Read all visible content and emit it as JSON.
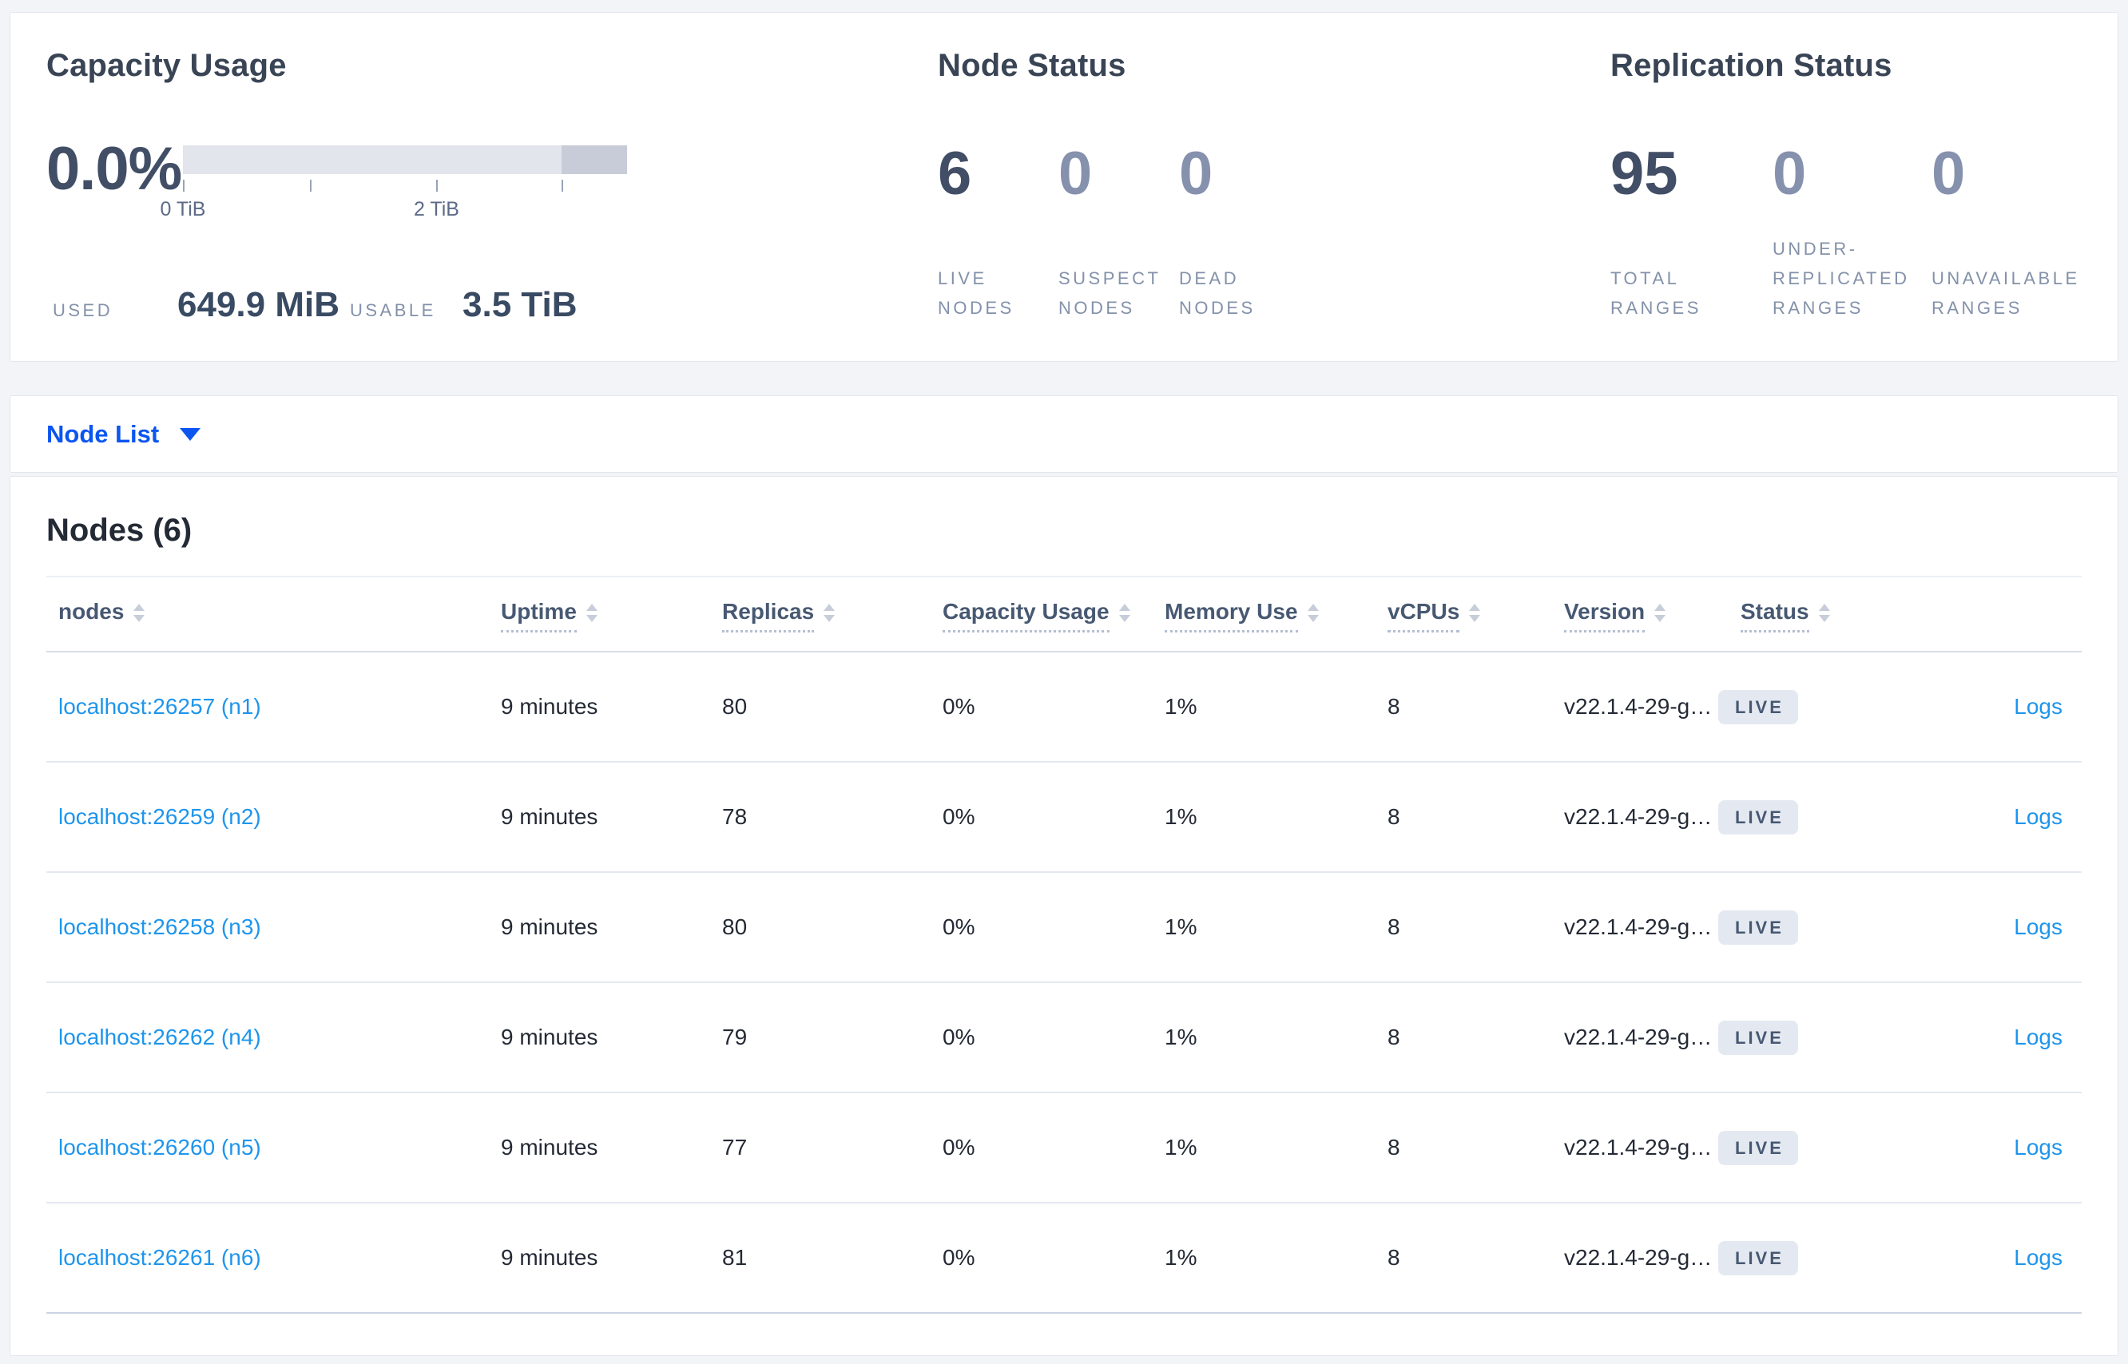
{
  "summary": {
    "capacity": {
      "title": "Capacity Usage",
      "percent": "0.0%",
      "bar": {
        "dark_from": 0.853
      },
      "ticks": [
        {
          "pos": 0,
          "label": "0 TiB"
        },
        {
          "pos": 0.286,
          "label": ""
        },
        {
          "pos": 0.571,
          "label": "2 TiB"
        },
        {
          "pos": 0.853,
          "label": ""
        }
      ],
      "used_label": "USED",
      "used_value": "649.9 MiB",
      "usable_label": "USABLE",
      "usable_value": "3.5 TiB"
    },
    "node_status": {
      "title": "Node Status",
      "stats": [
        {
          "value": "6",
          "label": "LIVE NODES",
          "muted": false
        },
        {
          "value": "0",
          "label": "SUSPECT NODES",
          "muted": true
        },
        {
          "value": "0",
          "label": "DEAD NODES",
          "muted": true
        }
      ]
    },
    "replication_status": {
      "title": "Replication Status",
      "stats": [
        {
          "value": "95",
          "label": "TOTAL RANGES",
          "muted": false
        },
        {
          "value": "0",
          "label": "UNDER-REPLICATED RANGES",
          "muted": true
        },
        {
          "value": "0",
          "label": "UNAVAILABLE RANGES",
          "muted": true
        }
      ]
    }
  },
  "view_selector": {
    "label": "Node List"
  },
  "table": {
    "title": "Nodes (6)",
    "columns": [
      {
        "label": "nodes",
        "tip": false
      },
      {
        "label": "Uptime",
        "tip": true
      },
      {
        "label": "Replicas",
        "tip": true
      },
      {
        "label": "Capacity Usage",
        "tip": true
      },
      {
        "label": "Memory Use",
        "tip": true
      },
      {
        "label": "vCPUs",
        "tip": true
      },
      {
        "label": "Version",
        "tip": true
      },
      {
        "label": "Status",
        "tip": true
      },
      {
        "label": "",
        "tip": false
      }
    ],
    "rows": [
      {
        "node": "localhost:26257 (n1)",
        "uptime": "9 minutes",
        "replicas": "80",
        "capacity": "0%",
        "memory": "1%",
        "vcpus": "8",
        "version": "v22.1.4-29-g…",
        "status": "LIVE",
        "logs": "Logs"
      },
      {
        "node": "localhost:26259 (n2)",
        "uptime": "9 minutes",
        "replicas": "78",
        "capacity": "0%",
        "memory": "1%",
        "vcpus": "8",
        "version": "v22.1.4-29-g…",
        "status": "LIVE",
        "logs": "Logs"
      },
      {
        "node": "localhost:26258 (n3)",
        "uptime": "9 minutes",
        "replicas": "80",
        "capacity": "0%",
        "memory": "1%",
        "vcpus": "8",
        "version": "v22.1.4-29-g…",
        "status": "LIVE",
        "logs": "Logs"
      },
      {
        "node": "localhost:26262 (n4)",
        "uptime": "9 minutes",
        "replicas": "79",
        "capacity": "0%",
        "memory": "1%",
        "vcpus": "8",
        "version": "v22.1.4-29-g…",
        "status": "LIVE",
        "logs": "Logs"
      },
      {
        "node": "localhost:26260 (n5)",
        "uptime": "9 minutes",
        "replicas": "77",
        "capacity": "0%",
        "memory": "1%",
        "vcpus": "8",
        "version": "v22.1.4-29-g…",
        "status": "LIVE",
        "logs": "Logs"
      },
      {
        "node": "localhost:26261 (n6)",
        "uptime": "9 minutes",
        "replicas": "81",
        "capacity": "0%",
        "memory": "1%",
        "vcpus": "8",
        "version": "v22.1.4-29-g…",
        "status": "LIVE",
        "logs": "Logs"
      }
    ]
  },
  "colors": {
    "page_bg": "#f3f4f8",
    "accent_blue": "#0b55f0",
    "link_blue": "#1e95ec",
    "heading": "#394455",
    "stat_dark": "#414e66",
    "stat_muted": "#8591ad",
    "bar_light": "#e3e5ed",
    "bar_dark": "#c7ccd8",
    "badge_bg": "#e4e9f1",
    "badge_text": "#475872"
  }
}
